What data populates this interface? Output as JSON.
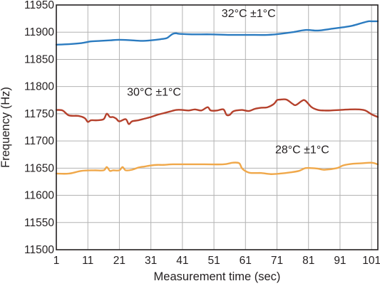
{
  "chart_data": {
    "type": "line",
    "title": "",
    "xlabel": "Measurement time (sec)",
    "ylabel": "Frequency (Hz)",
    "xlim": [
      1,
      103
    ],
    "ylim": [
      11500,
      11950
    ],
    "xticks": [
      1,
      11,
      21,
      31,
      41,
      51,
      61,
      71,
      81,
      91,
      101
    ],
    "yticks": [
      11500,
      11550,
      11600,
      11650,
      11700,
      11750,
      11800,
      11850,
      11900,
      11950
    ],
    "grid": true,
    "legend": "none",
    "series": [
      {
        "name": "32°C ±1°C",
        "color": "#2b7bc0",
        "x": [
          1,
          5,
          9,
          12,
          15,
          18,
          21,
          25,
          28,
          31,
          34,
          36,
          37,
          38,
          39,
          40,
          44,
          50,
          56,
          62,
          68,
          72,
          76,
          80,
          84,
          88,
          92,
          95,
          98,
          100,
          101,
          103
        ],
        "y": [
          11877,
          11878,
          11880,
          11883,
          11884,
          11885,
          11886,
          11885,
          11884,
          11885,
          11887,
          11889,
          11893,
          11897,
          11898,
          11897,
          11896,
          11896,
          11895,
          11895,
          11895,
          11897,
          11900,
          11904,
          11903,
          11906,
          11909,
          11912,
          11917,
          11920,
          11920,
          11920
        ]
      },
      {
        "name": "30°C ±1°C",
        "color": "#b5412c",
        "x": [
          1,
          3,
          5,
          8,
          10,
          11,
          12,
          14,
          16,
          17,
          18,
          19,
          20,
          21,
          23,
          24,
          25,
          27,
          29,
          31,
          33,
          35,
          37,
          39,
          41,
          43,
          45,
          47,
          49,
          50,
          52,
          54,
          55,
          56,
          57,
          58,
          60,
          62,
          64,
          66,
          68,
          70,
          71,
          72,
          74,
          76,
          77,
          79,
          80,
          82,
          84,
          86,
          88,
          91,
          94,
          97,
          99,
          101,
          103
        ],
        "y": [
          11757,
          11756,
          11747,
          11746,
          11742,
          11735,
          11738,
          11738,
          11740,
          11750,
          11744,
          11744,
          11741,
          11736,
          11740,
          11731,
          11736,
          11738,
          11741,
          11744,
          11748,
          11751,
          11754,
          11757,
          11757,
          11756,
          11758,
          11756,
          11762,
          11756,
          11756,
          11758,
          11748,
          11748,
          11754,
          11756,
          11757,
          11755,
          11759,
          11761,
          11762,
          11768,
          11775,
          11776,
          11776,
          11768,
          11766,
          11774,
          11774,
          11762,
          11757,
          11756,
          11756,
          11757,
          11758,
          11758,
          11756,
          11749,
          11744
        ]
      },
      {
        "name": "28°C ±1°C",
        "color": "#f0a84a",
        "x": [
          1,
          5,
          9,
          13,
          16,
          17,
          18,
          19,
          21,
          22,
          23,
          25,
          27,
          29,
          31,
          33,
          35,
          38,
          42,
          48,
          54,
          57,
          59,
          60,
          62,
          64,
          66,
          69,
          72,
          75,
          78,
          80,
          82,
          84,
          86,
          90,
          92,
          95,
          98,
          101,
          103
        ],
        "y": [
          11640,
          11640,
          11645,
          11646,
          11646,
          11652,
          11645,
          11646,
          11646,
          11652,
          11646,
          11647,
          11651,
          11653,
          11655,
          11656,
          11656,
          11657,
          11657,
          11657,
          11657,
          11660,
          11659,
          11649,
          11642,
          11641,
          11641,
          11639,
          11640,
          11642,
          11645,
          11650,
          11650,
          11649,
          11647,
          11650,
          11655,
          11658,
          11659,
          11660,
          11657
        ]
      }
    ],
    "annotations": [
      {
        "text": "32°C ±1°C",
        "x": 62,
        "y": 11928
      },
      {
        "text": "30°C ±1°C",
        "x": 32,
        "y": 11783
      },
      {
        "text": "28°C ±1°C",
        "x": 79,
        "y": 11677
      }
    ]
  }
}
